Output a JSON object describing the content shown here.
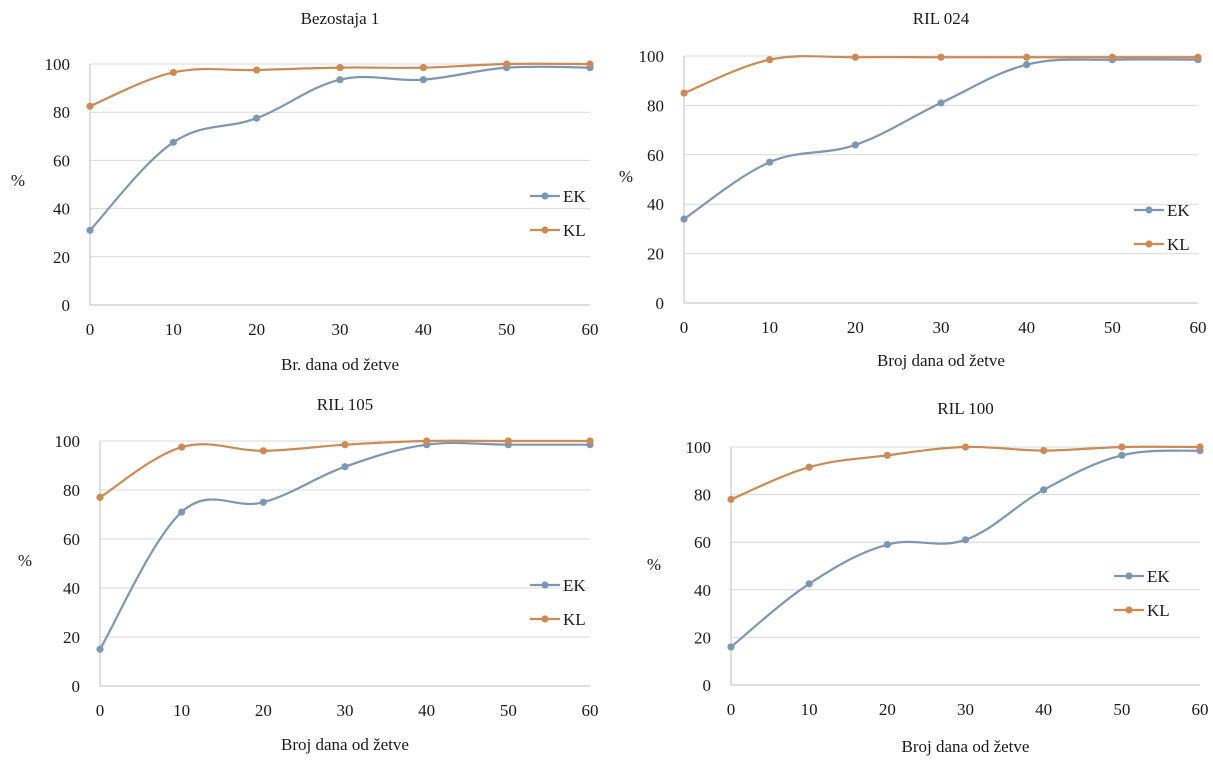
{
  "colors": {
    "EK": "#7f96b2",
    "KL": "#cc8a57"
  },
  "chart_data": [
    {
      "type": "line",
      "title": "Bezostaja 1",
      "xlabel": "Br. dana od žetve",
      "ylabel": "%",
      "x": [
        0,
        10,
        20,
        30,
        40,
        50,
        60
      ],
      "xlim": [
        0,
        60
      ],
      "ylim": [
        0,
        100
      ],
      "xticks": [
        "0",
        "10",
        "20",
        "30",
        "40",
        "50",
        "60"
      ],
      "yticks": [
        "0",
        "20",
        "40",
        "60",
        "80",
        "100"
      ],
      "grid": true,
      "legend": "right",
      "series": [
        {
          "name": "EK",
          "values": [
            31,
            67.5,
            77.5,
            93.5,
            93.5,
            98.5,
            98.5
          ]
        },
        {
          "name": "KL",
          "values": [
            82.5,
            96.5,
            97.5,
            98.5,
            98.5,
            100,
            100
          ]
        }
      ]
    },
    {
      "type": "line",
      "title": "RIL 024",
      "xlabel": "Broj dana od žetve",
      "ylabel": "%",
      "x": [
        0,
        10,
        20,
        30,
        40,
        50,
        60
      ],
      "xlim": [
        0,
        60
      ],
      "ylim": [
        0,
        100
      ],
      "xticks": [
        "0",
        "10",
        "20",
        "30",
        "40",
        "50",
        "60"
      ],
      "yticks": [
        "0",
        "20",
        "40",
        "60",
        "80",
        "100"
      ],
      "grid": true,
      "legend": "right",
      "series": [
        {
          "name": "EK",
          "values": [
            34,
            57,
            64,
            81,
            96.5,
            98.5,
            98.5
          ]
        },
        {
          "name": "KL",
          "values": [
            85,
            98.5,
            99.5,
            99.5,
            99.5,
            99.5,
            99.5
          ]
        }
      ]
    },
    {
      "type": "line",
      "title": "RIL 105",
      "xlabel": "Broj dana od žetve",
      "ylabel": "%",
      "x": [
        0,
        10,
        20,
        30,
        40,
        50,
        60
      ],
      "xlim": [
        0,
        60
      ],
      "ylim": [
        0,
        100
      ],
      "xticks": [
        "0",
        "10",
        "20",
        "30",
        "40",
        "50",
        "60"
      ],
      "yticks": [
        "0",
        "20",
        "40",
        "60",
        "80",
        "100"
      ],
      "grid": true,
      "legend": "right",
      "series": [
        {
          "name": "EK",
          "values": [
            15,
            71,
            75,
            89.5,
            98.5,
            98.5,
            98.5
          ]
        },
        {
          "name": "KL",
          "values": [
            77,
            97.5,
            96,
            98.5,
            100,
            100,
            100
          ]
        }
      ]
    },
    {
      "type": "line",
      "title": "RIL 100",
      "xlabel": "Broj dana od žetve",
      "ylabel": "%",
      "x": [
        0,
        10,
        20,
        30,
        40,
        50,
        60
      ],
      "xlim": [
        0,
        60
      ],
      "ylim": [
        0,
        100
      ],
      "xticks": [
        "0",
        "10",
        "20",
        "30",
        "40",
        "50",
        "60"
      ],
      "yticks": [
        "0",
        "20",
        "40",
        "60",
        "80",
        "100"
      ],
      "grid": true,
      "legend": "right",
      "series": [
        {
          "name": "EK",
          "values": [
            16,
            42.5,
            59,
            61,
            82,
            96.5,
            98.5
          ]
        },
        {
          "name": "KL",
          "values": [
            78,
            91.5,
            96.5,
            100,
            98.5,
            100,
            100
          ]
        }
      ]
    }
  ]
}
